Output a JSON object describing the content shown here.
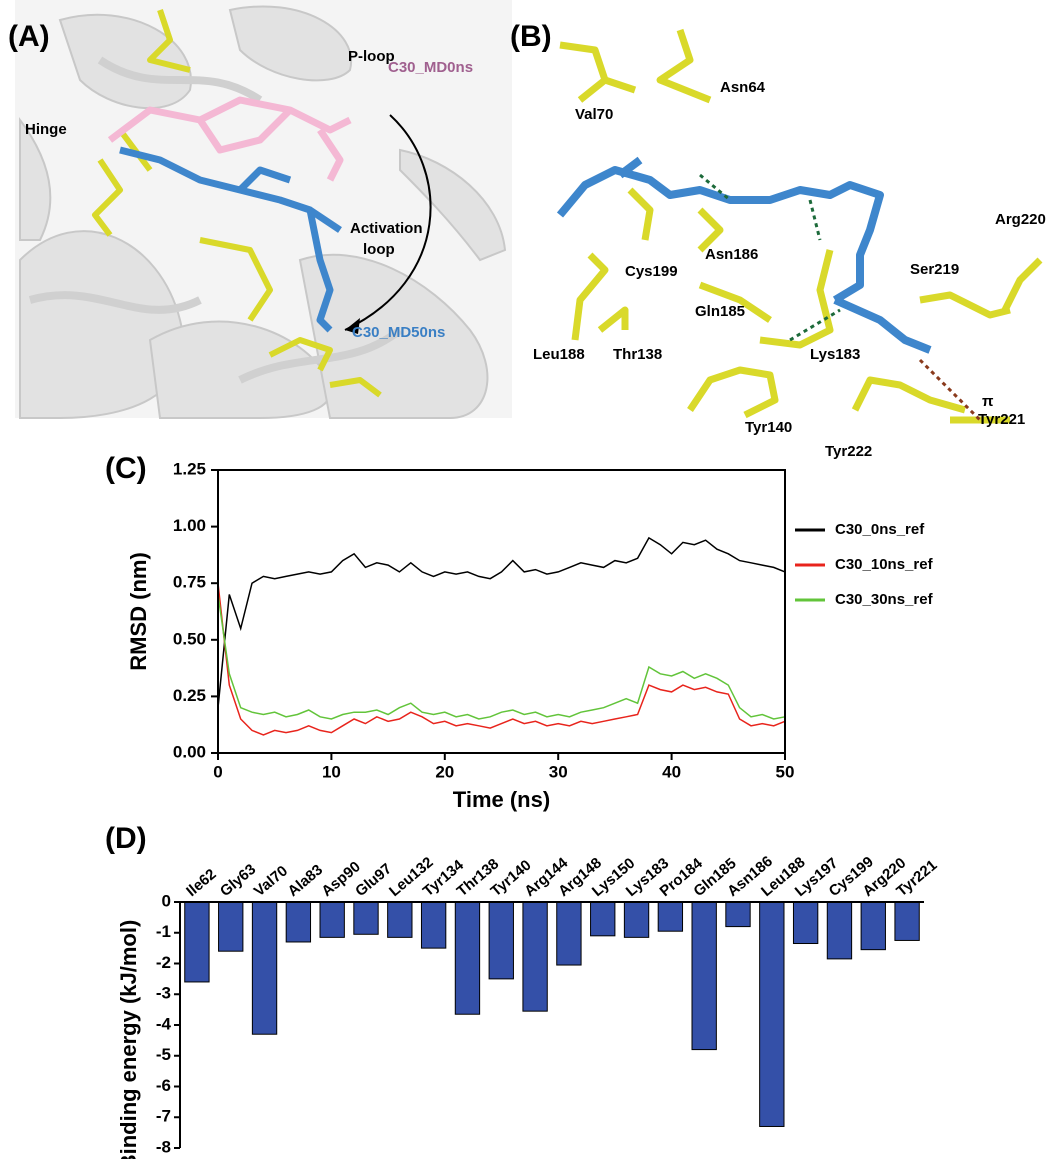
{
  "panel_a": {
    "label": "(A)",
    "hinge": "Hinge",
    "p_loop": "P-loop",
    "ligand_start": "C30_MD0ns",
    "activation_loop": [
      "Activation",
      "loop"
    ],
    "ligand_end": "C30_MD50ns"
  },
  "panel_b": {
    "label": "(B)",
    "residues": [
      "Val70",
      "Asn64",
      "Arg220",
      "Cys199",
      "Asn186",
      "Ser219",
      "Gln185",
      "Leu188",
      "Thr138",
      "Lys183",
      "Tyr140",
      "Tyr222",
      "Tyr221"
    ],
    "pi": "π"
  },
  "chart_data": [
    {
      "type": "line",
      "label": "(C)",
      "xlabel": "Time (ns)",
      "ylabel": "RMSD (nm)",
      "x": [
        0,
        1,
        2,
        3,
        4,
        5,
        6,
        7,
        8,
        9,
        10,
        11,
        12,
        13,
        14,
        15,
        16,
        17,
        18,
        19,
        20,
        21,
        22,
        23,
        24,
        25,
        26,
        27,
        28,
        29,
        30,
        31,
        32,
        33,
        34,
        35,
        36,
        37,
        38,
        39,
        40,
        41,
        42,
        43,
        44,
        45,
        46,
        47,
        48,
        49,
        50
      ],
      "xlim": [
        0,
        50
      ],
      "xticks": [
        0,
        10,
        20,
        30,
        40,
        50
      ],
      "ylim": [
        0,
        1.25
      ],
      "yticks": [
        {
          "value": 0,
          "label": "0.00"
        },
        {
          "value": 0.25,
          "label": "0.25"
        },
        {
          "value": 0.5,
          "label": "0.50"
        },
        {
          "value": 0.75,
          "label": "0.75"
        },
        {
          "value": 1,
          "label": "1.00"
        },
        {
          "value": 1.25,
          "label": "1.25"
        }
      ],
      "series": [
        {
          "name": "C30_0ns_ref",
          "color": "#000000",
          "values": [
            0.2,
            0.7,
            0.55,
            0.75,
            0.78,
            0.77,
            0.78,
            0.79,
            0.8,
            0.79,
            0.8,
            0.85,
            0.88,
            0.82,
            0.84,
            0.83,
            0.8,
            0.84,
            0.8,
            0.78,
            0.8,
            0.79,
            0.8,
            0.78,
            0.77,
            0.8,
            0.85,
            0.8,
            0.81,
            0.79,
            0.8,
            0.82,
            0.84,
            0.83,
            0.82,
            0.85,
            0.84,
            0.86,
            0.95,
            0.92,
            0.88,
            0.93,
            0.92,
            0.94,
            0.9,
            0.88,
            0.85,
            0.84,
            0.83,
            0.82,
            0.8
          ]
        },
        {
          "name": "C30_10ns_ref",
          "color": "#e8241c",
          "values": [
            0.75,
            0.3,
            0.15,
            0.1,
            0.08,
            0.1,
            0.09,
            0.1,
            0.12,
            0.1,
            0.09,
            0.12,
            0.15,
            0.13,
            0.16,
            0.14,
            0.15,
            0.18,
            0.16,
            0.13,
            0.14,
            0.12,
            0.13,
            0.12,
            0.11,
            0.13,
            0.15,
            0.13,
            0.14,
            0.12,
            0.13,
            0.12,
            0.14,
            0.13,
            0.14,
            0.15,
            0.16,
            0.17,
            0.3,
            0.28,
            0.27,
            0.3,
            0.28,
            0.29,
            0.27,
            0.26,
            0.15,
            0.12,
            0.13,
            0.12,
            0.14
          ]
        },
        {
          "name": "C30_30ns_ref",
          "color": "#62c43a",
          "values": [
            0.7,
            0.35,
            0.2,
            0.18,
            0.17,
            0.18,
            0.16,
            0.17,
            0.19,
            0.16,
            0.15,
            0.17,
            0.18,
            0.18,
            0.19,
            0.17,
            0.2,
            0.22,
            0.18,
            0.17,
            0.18,
            0.16,
            0.17,
            0.15,
            0.16,
            0.18,
            0.19,
            0.17,
            0.18,
            0.16,
            0.17,
            0.16,
            0.18,
            0.19,
            0.2,
            0.22,
            0.24,
            0.22,
            0.38,
            0.35,
            0.34,
            0.36,
            0.33,
            0.35,
            0.33,
            0.3,
            0.2,
            0.16,
            0.17,
            0.15,
            0.16
          ]
        }
      ]
    },
    {
      "type": "bar",
      "label": "(D)",
      "ylabel": "Binding energy (kJ/mol)",
      "color": "#3450a8",
      "categories": [
        "Ile62",
        "Gly63",
        "Val70",
        "Ala83",
        "Asp90",
        "Glu97",
        "Leu132",
        "Tyr134",
        "Thr138",
        "Tyr140",
        "Arg144",
        "Arg148",
        "Lys150",
        "Lys183",
        "Pro184",
        "Gln185",
        "Asn186",
        "Leu188",
        "Lys197",
        "Cys199",
        "Arg220",
        "Tyr221"
      ],
      "values": [
        -2.6,
        -1.6,
        -4.3,
        -1.3,
        -1.15,
        -1.05,
        -1.15,
        -1.5,
        -3.65,
        -2.5,
        -3.55,
        -2.05,
        -1.1,
        -1.15,
        -0.95,
        -4.8,
        -0.8,
        -7.3,
        -1.35,
        -1.85,
        -1.55,
        -1.25
      ],
      "ylim": [
        -8,
        0
      ],
      "yticks": [
        0,
        -1,
        -2,
        -3,
        -4,
        -5,
        -6,
        -7,
        -8
      ]
    }
  ]
}
